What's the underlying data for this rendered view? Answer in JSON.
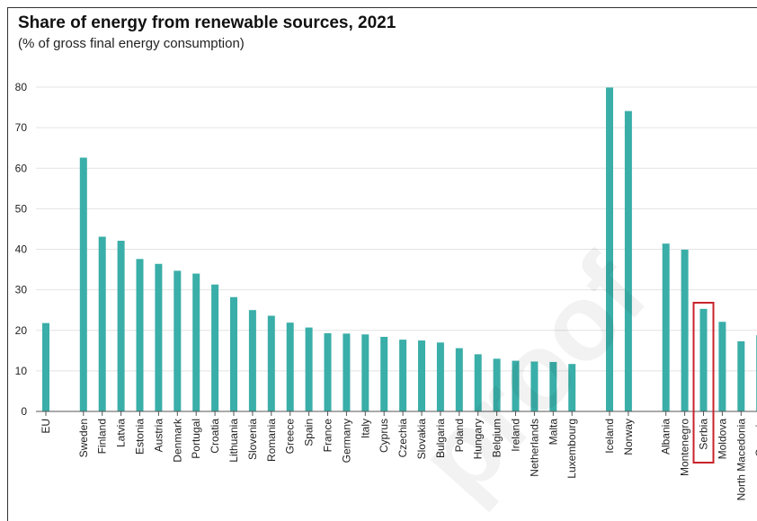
{
  "chart_data": {
    "type": "bar",
    "title": "Share of energy from renewable sources, 2021",
    "subtitle": "(% of gross final energy consumption)",
    "categories": [
      "EU",
      "",
      "Sweden",
      "Finland",
      "Latvia",
      "Estonia",
      "Austria",
      "Denmark",
      "Portugal",
      "Croatia",
      "Lithuania",
      "Slovenia",
      "Romania",
      "Greece",
      "Spain",
      "France",
      "Germany",
      "Italy",
      "Cyprus",
      "Czechia",
      "Slovakia",
      "Bulgaria",
      "Poland",
      "Hungary",
      "Belgium",
      "Ireland",
      "Netherlands",
      "Malta",
      "Luxembourg",
      "",
      "Iceland",
      "Norway",
      "",
      "Albania",
      "Montenegro",
      "Serbia",
      "Moldova",
      "North Macedonia",
      "Georgia"
    ],
    "values": [
      21.8,
      null,
      62.6,
      43.1,
      42.1,
      37.6,
      36.4,
      34.7,
      34.0,
      31.3,
      28.2,
      25.0,
      23.6,
      21.9,
      20.7,
      19.3,
      19.2,
      19.0,
      18.4,
      17.7,
      17.5,
      17.0,
      15.6,
      14.1,
      13.0,
      12.5,
      12.3,
      12.2,
      11.7,
      null,
      79.9,
      74.1,
      null,
      41.4,
      39.9,
      25.3,
      22.1,
      17.3,
      18.8
    ],
    "ylim": [
      0,
      80
    ],
    "yticks": [
      0,
      10,
      20,
      30,
      40,
      50,
      60,
      70,
      80
    ],
    "grid": true,
    "highlight": "Serbia",
    "bar_color": "#3aaea8",
    "highlight_color": "#c8232c"
  },
  "watermark": "proof"
}
